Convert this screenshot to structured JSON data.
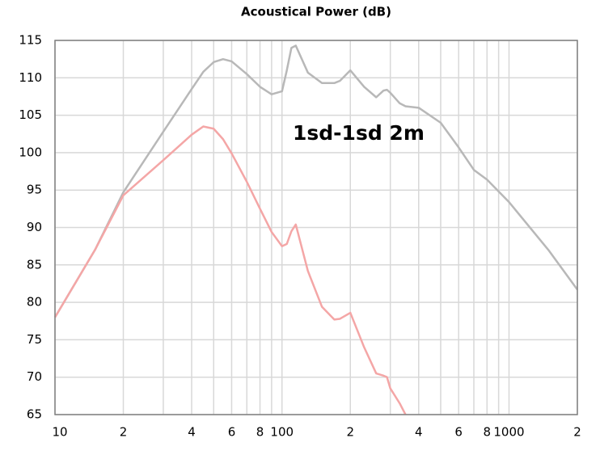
{
  "chart_data": {
    "type": "line",
    "title": "Acoustical Power (dB)",
    "annotation": "1sd-1sd 2m",
    "x": [
      10,
      15,
      20,
      30,
      40,
      45,
      50,
      55,
      60,
      70,
      80,
      90,
      100,
      105,
      110,
      115,
      130,
      150,
      170,
      180,
      200,
      230,
      260,
      280,
      290,
      300,
      330,
      350,
      400,
      500,
      600,
      700,
      800,
      1000,
      1500,
      2000
    ],
    "series": [
      {
        "color": "#b8b8b8",
        "values": [
          78,
          87,
          94.7,
          102.8,
          108.5,
          110.8,
          112.1,
          112.5,
          112.2,
          110.5,
          108.8,
          107.8,
          108.2,
          111,
          114,
          114.3,
          110.7,
          109.3,
          109.3,
          109.6,
          111,
          108.8,
          107.4,
          108.3,
          108.4,
          108,
          106.6,
          106.2,
          106,
          104,
          100.7,
          97.7,
          96.4,
          93.4,
          86.9,
          81.7
        ]
      },
      {
        "color": "#f4a6a6",
        "values": [
          78,
          87,
          94.3,
          99,
          102.4,
          103.5,
          103.2,
          101.8,
          99.9,
          96.1,
          92.5,
          89.4,
          87.5,
          87.8,
          89.5,
          90.4,
          84.2,
          79.4,
          77.7,
          77.8,
          78.6,
          74,
          70.5,
          70.2,
          70,
          68.5,
          66.5,
          65,
          null,
          null,
          null,
          null,
          null,
          null,
          null,
          null
        ]
      }
    ],
    "xscale": "log",
    "xlim": [
      10,
      2000
    ],
    "ylim": [
      65,
      115
    ],
    "xticks": [
      {
        "value": 10,
        "label": "10"
      },
      {
        "value": 20,
        "label": "2"
      },
      {
        "value": 40,
        "label": "4"
      },
      {
        "value": 60,
        "label": "6"
      },
      {
        "value": 80,
        "label": "8"
      },
      {
        "value": 100,
        "label": "100"
      },
      {
        "value": 200,
        "label": "2"
      },
      {
        "value": 400,
        "label": "4"
      },
      {
        "value": 600,
        "label": "6"
      },
      {
        "value": 800,
        "label": "8"
      },
      {
        "value": 1000,
        "label": "1000"
      },
      {
        "value": 2000,
        "label": "2"
      }
    ],
    "xminorticks": [
      30,
      50,
      70,
      90,
      300,
      500,
      700,
      900
    ],
    "yticks": [
      65,
      70,
      75,
      80,
      85,
      90,
      95,
      100,
      105,
      110,
      115
    ],
    "grid": true
  }
}
